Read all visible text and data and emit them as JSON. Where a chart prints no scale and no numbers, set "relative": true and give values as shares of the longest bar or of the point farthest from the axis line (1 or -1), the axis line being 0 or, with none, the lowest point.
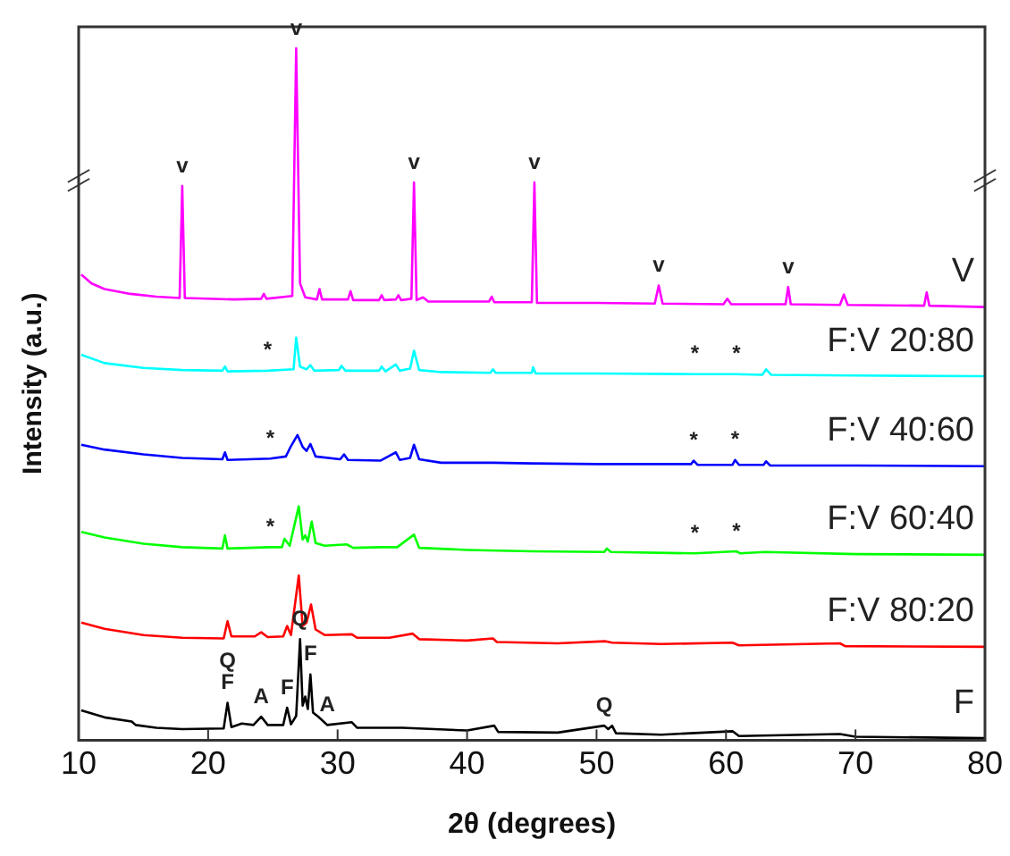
{
  "chart_data": {
    "type": "line",
    "relative": true,
    "xlabel": "2θ (degrees)",
    "ylabel": "Intensity (a.u.)",
    "xlim": [
      10,
      80
    ],
    "xticks": [
      10,
      20,
      30,
      40,
      50,
      60,
      70,
      80
    ],
    "grid": false,
    "legend": false,
    "series": [
      {
        "name": "V",
        "color": "#ff00ff",
        "x": [
          10.2,
          11,
          12,
          14,
          16,
          17.8,
          18,
          18.2,
          22,
          24.1,
          24.3,
          24.5,
          26.5,
          26.8,
          27.1,
          27.5,
          28.4,
          28.6,
          28.8,
          30.8,
          31,
          31.2,
          33.2,
          33.4,
          33.6,
          34.5,
          34.7,
          34.9,
          35.7,
          35.9,
          36.1,
          36.6,
          37,
          41.7,
          41.9,
          42.1,
          45.0,
          45.2,
          45.4,
          50,
          54.5,
          54.8,
          55.1,
          59.8,
          60.1,
          60.4,
          64.6,
          64.8,
          65,
          68.8,
          69.1,
          69.4,
          75.3,
          75.5,
          75.7,
          80
        ],
        "values": [
          0.673,
          0.66,
          0.652,
          0.645,
          0.641,
          0.639,
          0.801,
          0.639,
          0.637,
          0.638,
          0.645,
          0.638,
          0.642,
          1.0,
          0.66,
          0.64,
          0.637,
          0.652,
          0.637,
          0.637,
          0.649,
          0.636,
          0.636,
          0.643,
          0.636,
          0.637,
          0.643,
          0.636,
          0.638,
          0.806,
          0.636,
          0.64,
          0.634,
          0.634,
          0.641,
          0.633,
          0.633,
          0.806,
          0.632,
          0.632,
          0.631,
          0.657,
          0.631,
          0.63,
          0.638,
          0.63,
          0.63,
          0.655,
          0.63,
          0.629,
          0.644,
          0.629,
          0.628,
          0.647,
          0.628,
          0.626
        ]
      },
      {
        "name": "F:V 20:80",
        "color": "#00ffff",
        "x": [
          10.2,
          12,
          15,
          18,
          21.1,
          21.3,
          21.5,
          24.6,
          26.6,
          26.8,
          27.1,
          27.6,
          27.9,
          28.2,
          30.1,
          30.3,
          30.6,
          33.2,
          33.4,
          33.7,
          34.5,
          34.8,
          35.6,
          35.9,
          36.3,
          38,
          41.8,
          42,
          42.2,
          45,
          45.1,
          45.3,
          50,
          57.6,
          60.8,
          62.8,
          63.1,
          63.5,
          70,
          80
        ],
        "values": [
          0.557,
          0.545,
          0.538,
          0.535,
          0.534,
          0.54,
          0.533,
          0.534,
          0.536,
          0.582,
          0.54,
          0.536,
          0.542,
          0.534,
          0.535,
          0.541,
          0.534,
          0.534,
          0.54,
          0.533,
          0.543,
          0.534,
          0.537,
          0.563,
          0.535,
          0.532,
          0.531,
          0.536,
          0.531,
          0.531,
          0.539,
          0.53,
          0.53,
          0.529,
          0.529,
          0.528,
          0.536,
          0.528,
          0.527,
          0.526
        ]
      },
      {
        "name": "F:V 40:60",
        "color": "#0000ff",
        "x": [
          10.2,
          12,
          15,
          18,
          21.1,
          21.3,
          21.5,
          24.8,
          26,
          26.4,
          26.9,
          27.3,
          27.6,
          27.9,
          28.3,
          30.2,
          30.5,
          30.8,
          33.3,
          34.5,
          34.8,
          35.6,
          35.9,
          36.3,
          38,
          42,
          45,
          50,
          57.3,
          57.5,
          57.8,
          60.5,
          60.7,
          61,
          62.9,
          63.1,
          63.4,
          70,
          80
        ],
        "values": [
          0.427,
          0.42,
          0.413,
          0.408,
          0.406,
          0.416,
          0.405,
          0.407,
          0.41,
          0.425,
          0.441,
          0.424,
          0.418,
          0.428,
          0.41,
          0.406,
          0.413,
          0.405,
          0.404,
          0.416,
          0.405,
          0.408,
          0.427,
          0.406,
          0.401,
          0.401,
          0.4,
          0.399,
          0.399,
          0.404,
          0.398,
          0.398,
          0.405,
          0.398,
          0.398,
          0.403,
          0.397,
          0.397,
          0.396
        ]
      },
      {
        "name": "F:V 60:40",
        "color": "#00ff00",
        "x": [
          10.2,
          12,
          15,
          18,
          21.1,
          21.3,
          21.5,
          24.8,
          25.7,
          25.9,
          26.3,
          27.0,
          27.3,
          27.5,
          27.7,
          28.0,
          28.3,
          29,
          30.7,
          31.2,
          33.4,
          34.6,
          35.9,
          36.3,
          40,
          45,
          50.6,
          50.8,
          51.1,
          57.6,
          60.8,
          61.1,
          63,
          70,
          80
        ],
        "values": [
          0.301,
          0.293,
          0.284,
          0.279,
          0.277,
          0.296,
          0.277,
          0.279,
          0.279,
          0.291,
          0.281,
          0.338,
          0.29,
          0.296,
          0.287,
          0.316,
          0.285,
          0.281,
          0.283,
          0.278,
          0.279,
          0.279,
          0.297,
          0.278,
          0.275,
          0.273,
          0.272,
          0.277,
          0.272,
          0.27,
          0.273,
          0.27,
          0.272,
          0.269,
          0.268
        ]
      },
      {
        "name": "F:V 80:20",
        "color": "#ff0000",
        "x": [
          10.2,
          12,
          15,
          18,
          21.2,
          21.5,
          21.8,
          23.6,
          24.1,
          24.6,
          25.8,
          26.1,
          26.4,
          27.0,
          27.3,
          27.6,
          27.95,
          28.3,
          29,
          31.1,
          31.5,
          34,
          35.8,
          36.3,
          40,
          42,
          42.3,
          47,
          50.7,
          51.2,
          55,
          60.5,
          61,
          68.8,
          69.2,
          80
        ],
        "values": [
          0.17,
          0.161,
          0.152,
          0.148,
          0.147,
          0.172,
          0.15,
          0.15,
          0.156,
          0.149,
          0.15,
          0.165,
          0.152,
          0.238,
          0.165,
          0.17,
          0.196,
          0.16,
          0.152,
          0.153,
          0.148,
          0.148,
          0.154,
          0.146,
          0.144,
          0.147,
          0.142,
          0.14,
          0.143,
          0.141,
          0.139,
          0.141,
          0.137,
          0.14,
          0.136,
          0.135
        ]
      },
      {
        "name": "F",
        "color": "#000000",
        "x": [
          10.2,
          12,
          14.1,
          14.4,
          16,
          18,
          21.2,
          21.5,
          21.8,
          22.6,
          23.5,
          24.1,
          24.6,
          25.8,
          26.1,
          26.4,
          26.8,
          27.1,
          27.3,
          27.5,
          27.7,
          27.9,
          28.1,
          28.5,
          29.2,
          31.1,
          31.5,
          35,
          40,
          42.1,
          42.4,
          47,
          50.6,
          50.9,
          51.2,
          51.5,
          55,
          60.5,
          61,
          68.8,
          70,
          80
        ],
        "values": [
          0.043,
          0.033,
          0.027,
          0.022,
          0.018,
          0.016,
          0.017,
          0.054,
          0.019,
          0.024,
          0.022,
          0.034,
          0.022,
          0.022,
          0.047,
          0.023,
          0.035,
          0.146,
          0.05,
          0.063,
          0.045,
          0.095,
          0.04,
          0.034,
          0.022,
          0.026,
          0.018,
          0.018,
          0.014,
          0.021,
          0.012,
          0.011,
          0.021,
          0.016,
          0.021,
          0.01,
          0.008,
          0.013,
          0.006,
          0.009,
          0.005,
          0.003
        ]
      }
    ],
    "annotations": [
      {
        "text": "v",
        "x": 18.0,
        "y": 0.801
      },
      {
        "text": "v",
        "x": 26.8,
        "y": 1.0
      },
      {
        "text": "v",
        "x": 35.9,
        "y": 0.806
      },
      {
        "text": "v",
        "x": 45.2,
        "y": 0.806
      },
      {
        "text": "v",
        "x": 54.8,
        "y": 0.657
      },
      {
        "text": "v",
        "x": 64.8,
        "y": 0.655
      },
      {
        "text": "*",
        "x": 24.6,
        "y": 0.534
      },
      {
        "text": "*",
        "x": 57.6,
        "y": 0.529
      },
      {
        "text": "*",
        "x": 60.8,
        "y": 0.529
      },
      {
        "text": "*",
        "x": 24.8,
        "y": 0.407
      },
      {
        "text": "*",
        "x": 57.5,
        "y": 0.404
      },
      {
        "text": "*",
        "x": 60.7,
        "y": 0.405
      },
      {
        "text": "*",
        "x": 24.8,
        "y": 0.279
      },
      {
        "text": "*",
        "x": 57.6,
        "y": 0.27
      },
      {
        "text": "*",
        "x": 60.8,
        "y": 0.273
      },
      {
        "text": "F",
        "x": 21.5,
        "y": 0.054
      },
      {
        "text": "Q",
        "x": 21.5,
        "y": 0.054
      },
      {
        "text": "A",
        "x": 24.1,
        "y": 0.034
      },
      {
        "text": "F",
        "x": 26.1,
        "y": 0.047
      },
      {
        "text": "Q",
        "x": 27.1,
        "y": 0.146
      },
      {
        "text": "F",
        "x": 27.9,
        "y": 0.095
      },
      {
        "text": "A",
        "x": 29.2,
        "y": 0.022
      },
      {
        "text": "Q",
        "x": 50.6,
        "y": 0.021
      }
    ]
  }
}
